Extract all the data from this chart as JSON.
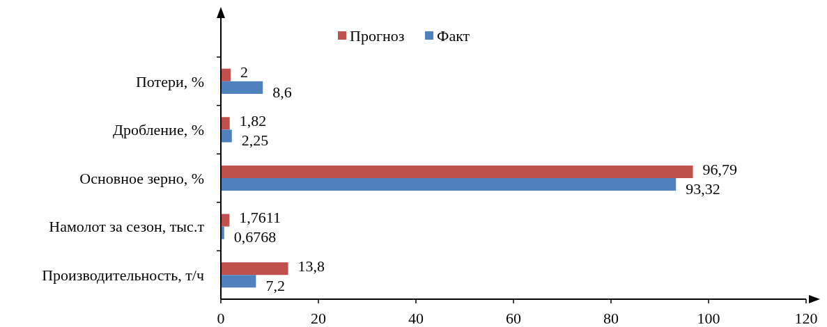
{
  "chart_data": {
    "type": "bar",
    "orientation": "horizontal",
    "categories": [
      "Потери, %",
      "Дробление, %",
      "Основное зерно, %",
      "Намолот за сезон, тыс.т",
      "Производительность, т/ч"
    ],
    "series": [
      {
        "name": "Прогноз",
        "color": "#c0504d",
        "values": [
          2,
          1.82,
          96.79,
          1.7611,
          13.8
        ],
        "value_labels": [
          "2",
          "1,82",
          "96,79",
          "1,7611",
          "13,8"
        ]
      },
      {
        "name": "Факт",
        "color": "#4f81bd",
        "values": [
          8.6,
          2.25,
          93.32,
          0.6768,
          7.2
        ],
        "value_labels": [
          "8,6",
          "2,25",
          "93,32",
          "0,6768",
          "7,2"
        ]
      }
    ],
    "xlim": [
      0,
      120
    ],
    "xticks": [
      0,
      20,
      40,
      60,
      80,
      100,
      120
    ],
    "grid": false,
    "legend": "top"
  }
}
